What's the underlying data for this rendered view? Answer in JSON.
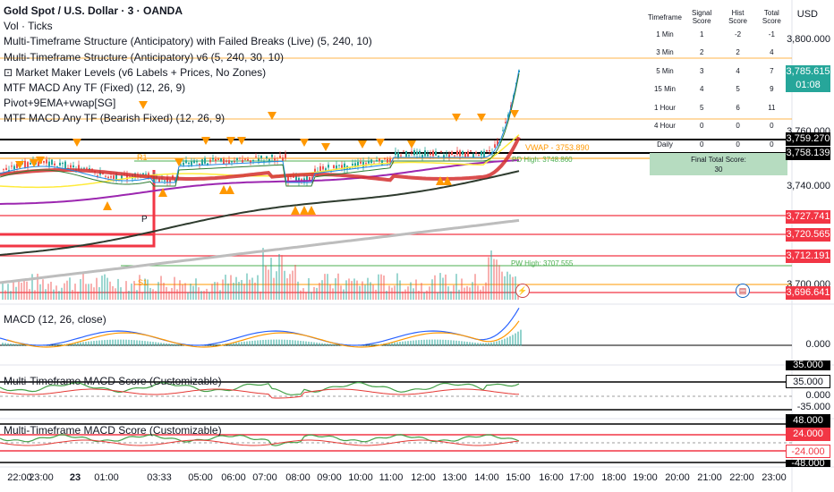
{
  "legend": {
    "title": "Gold Spot / U.S. Dollar · 3 · OANDA",
    "lines": [
      "Vol · Ticks",
      "Multi-Timeframe Structure (Anticipatory) with Failed Breaks (Live) (5, 240, 10)",
      "Multi-Timeframe Structure (Anticipatory) v6 (5, 240, 30, 10)",
      "⊡ Market Maker Levels (v6 Labels + Prices, No Zones)",
      "MTF MACD Any TF (Fixed) (12, 26, 9)",
      "Pivot+9EMA+vwap[SG]",
      "MTF MACD Any TF (Bearish Fixed) (12, 26, 9)"
    ]
  },
  "currency": "USD",
  "score_table": {
    "headers": [
      "Timeframe",
      "Signal Score",
      "Hist Score",
      "Total Score"
    ],
    "rows": [
      [
        "1 Min",
        "1",
        "-2",
        "-1"
      ],
      [
        "3 Min",
        "2",
        "2",
        "4"
      ],
      [
        "5 Min",
        "3",
        "4",
        "7"
      ],
      [
        "15 Min",
        "4",
        "5",
        "9"
      ],
      [
        "1 Hour",
        "5",
        "6",
        "11"
      ],
      [
        "4 Hour",
        "0",
        "0",
        "0"
      ],
      [
        "Daily",
        "0",
        "0",
        "0"
      ]
    ],
    "final_label": "Final Total Score:",
    "final_value": "30"
  },
  "pivot_labels": {
    "r1": "R1",
    "s1": "S1",
    "p": "P",
    "vwap": "VWAP - 3753.890",
    "pd_high": "PD High: 3748.860",
    "pw_high": "PW High: 3707.555"
  },
  "price_axis": {
    "ticks": [
      "3,800.000",
      "3,760.000",
      "3,740.000",
      "3,700.000"
    ],
    "labels": [
      {
        "text": "3,785.615",
        "bg": "#26a69a",
        "fg": "#ffffff"
      },
      {
        "text": "01:08",
        "bg": "#26a69a",
        "fg": "#ffffff"
      },
      {
        "text": "3,759.270",
        "bg": "#000000",
        "fg": "#ffffff"
      },
      {
        "text": "3,758.139",
        "bg": "#000000",
        "fg": "#ffffff"
      },
      {
        "text": "3,727.741",
        "bg": "#f23645",
        "fg": "#ffffff"
      },
      {
        "text": "3,720.565",
        "bg": "#f23645",
        "fg": "#ffffff"
      },
      {
        "text": "3,712.191",
        "bg": "#f23645",
        "fg": "#ffffff"
      },
      {
        "text": "3,696.641",
        "bg": "#f23645",
        "fg": "#ffffff"
      }
    ]
  },
  "macd": {
    "label": "MACD (12, 26, close)",
    "axis_value": "0.000"
  },
  "score1": {
    "label": "Multi-Timeframe MACD Score (Customizable)",
    "top": "35.000",
    "label_value": "35.000",
    "zero": "0.000",
    "bottom": "-35.000",
    "black_label": "48.000"
  },
  "score2": {
    "label": "Multi-Timeframe MACD Score (Customizable)",
    "red_top": "24.000",
    "red_bottom": "-24.000",
    "black_bottom": "-48.000"
  },
  "time_axis": [
    "22:00",
    "23:00",
    "23",
    "01:00",
    "03:33",
    "05:00",
    "06:00",
    "07:00",
    "08:00",
    "09:00",
    "10:00",
    "11:00",
    "12:00",
    "13:00",
    "14:00",
    "15:00",
    "16:00",
    "17:00",
    "18:00",
    "19:00",
    "20:00",
    "21:00",
    "22:00",
    "23:00"
  ],
  "colors": {
    "bull": "#26a69a",
    "bear": "#ef5350",
    "orange": "#ff9800",
    "red_line": "#f23645",
    "wma": "#d32f2f",
    "purple": "#9c27b0",
    "yellow": "#ffeb3b",
    "dark_ma": "#2e3b2e"
  }
}
